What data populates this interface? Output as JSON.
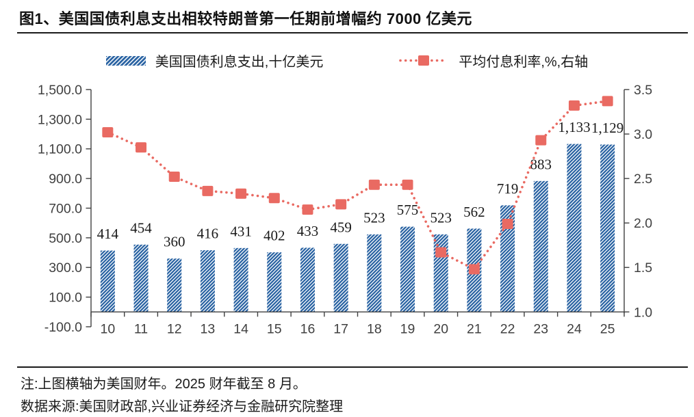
{
  "title": "图1、美国国债利息支出相较特朗普第一任期前增幅约 7000 亿美元",
  "legend": [
    {
      "label": "美国国债利息支出,十亿美元",
      "swatch": "hatched-bar"
    },
    {
      "label": "平均付息利率,%,右轴",
      "swatch": "dotted-line-square-marker"
    }
  ],
  "colors": {
    "bar_blue": "#2B64A3",
    "line_red": "#E96A62",
    "axis_line": "#3f3f3f",
    "axis_text": "#404040",
    "label_text": "#1a1a1a"
  },
  "chart_data": {
    "type": "bar",
    "subtype": "combo-bar-line",
    "title": "美国国债利息支出与平均付息利率",
    "categories": [
      "10",
      "11",
      "12",
      "13",
      "14",
      "15",
      "16",
      "17",
      "18",
      "19",
      "20",
      "21",
      "22",
      "23",
      "24",
      "25"
    ],
    "series": [
      {
        "name": "美国国债利息支出,十亿美元",
        "type": "bar",
        "axis": "left",
        "values": [
          414,
          454,
          360,
          416,
          431,
          402,
          433,
          459,
          523,
          575,
          523,
          562,
          719,
          883,
          1133,
          1129
        ],
        "labels": [
          "414",
          "454",
          "360",
          "416",
          "431",
          "402",
          "433",
          "459",
          "523",
          "575",
          "523",
          "562",
          "719",
          "883",
          "1,133",
          "1,129"
        ]
      },
      {
        "name": "平均付息利率,%,右轴",
        "type": "line",
        "axis": "right",
        "values": [
          3.02,
          2.85,
          2.52,
          2.36,
          2.33,
          2.28,
          2.15,
          2.21,
          2.43,
          2.43,
          1.67,
          1.48,
          1.99,
          2.93,
          3.32,
          3.37
        ]
      }
    ],
    "left_axis": {
      "min": -100,
      "max": 1500,
      "step": 200,
      "ticks": [
        {
          "v": 1500,
          "label": "1,500.0"
        },
        {
          "v": 1300,
          "label": "1,300.0"
        },
        {
          "v": 1100,
          "label": "1,100.0"
        },
        {
          "v": 900,
          "label": "900.0"
        },
        {
          "v": 700,
          "label": "700.0"
        },
        {
          "v": 500,
          "label": "500.0"
        },
        {
          "v": 300,
          "label": "300.0"
        },
        {
          "v": 100,
          "label": "100.0"
        },
        {
          "v": -100,
          "label": "-100.0"
        }
      ]
    },
    "right_axis": {
      "min": 1.0,
      "max": 3.5,
      "step": 0.5,
      "ticks": [
        {
          "v": 3.5,
          "label": "3.5"
        },
        {
          "v": 3.0,
          "label": "3.0"
        },
        {
          "v": 2.5,
          "label": "2.5"
        },
        {
          "v": 2.0,
          "label": "2.0"
        },
        {
          "v": 1.5,
          "label": "1.5"
        },
        {
          "v": 1.0,
          "label": "1.0"
        }
      ]
    },
    "grid": false,
    "legend_position": "top"
  },
  "footer": {
    "note": "注:上图横轴为美国财年。2025 财年截至 8 月。",
    "source": "数据来源:美国财政部,兴业证券经济与金融研究院整理"
  }
}
